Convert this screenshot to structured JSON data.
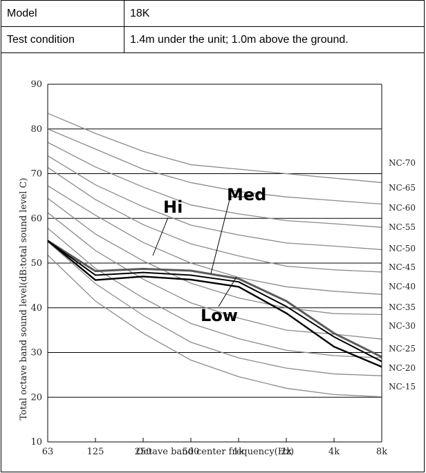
{
  "spec": {
    "model_label": "Model",
    "model_value": "18K",
    "condition_label": "Test condition",
    "condition_value": "1.4m under the unit; 1.0m above the ground."
  },
  "chart_data": {
    "type": "line",
    "xlabel": "Octave band center frequency(Hz)",
    "ylabel": "Total octave band sound level(dB:total sound level C)",
    "categories": [
      "63",
      "125",
      "250",
      "500",
      "1k",
      "2k",
      "4k",
      "8k"
    ],
    "ylim": [
      10,
      90
    ],
    "yticks": [
      10,
      20,
      30,
      40,
      50,
      60,
      70,
      80,
      90
    ],
    "grid": "horizontal",
    "nc_curves": [
      {
        "name": "NC-70",
        "values": [
          83.5,
          79,
          75,
          72,
          71,
          70,
          69,
          68
        ]
      },
      {
        "name": "NC-65",
        "values": [
          80,
          75.5,
          71,
          68,
          66,
          64.8,
          64,
          63.2
        ]
      },
      {
        "name": "NC-60",
        "values": [
          77,
          71.5,
          67,
          63,
          61,
          59.5,
          58.8,
          58
        ]
      },
      {
        "name": "NC-55",
        "values": [
          74,
          67.5,
          62.6,
          58.5,
          56.3,
          54.5,
          53.8,
          53
        ]
      },
      {
        "name": "NC-50",
        "values": [
          71.4,
          64.2,
          58.6,
          54.3,
          51.6,
          49.3,
          48.5,
          48
        ]
      },
      {
        "name": "NC-45",
        "values": [
          67.3,
          60.7,
          54.6,
          50,
          46.8,
          44.7,
          43.7,
          43
        ]
      },
      {
        "name": "NC-40",
        "values": [
          64.5,
          56.5,
          50.5,
          45.5,
          42.2,
          40,
          38.7,
          38.5
        ]
      },
      {
        "name": "NC-35",
        "values": [
          61.3,
          52.8,
          46.4,
          41.1,
          37.7,
          35,
          34.1,
          33
        ]
      },
      {
        "name": "NC-30",
        "values": [
          57.8,
          48.8,
          42.2,
          36.5,
          33.1,
          30.5,
          29.3,
          28.8
        ]
      },
      {
        "name": "NC-25",
        "values": [
          54.8,
          45.4,
          38.3,
          32.3,
          28.8,
          26.5,
          25.2,
          24.8
        ]
      },
      {
        "name": "NC-20",
        "values": [
          51.8,
          41.5,
          34.3,
          28.3,
          24.6,
          22,
          20.6,
          20.1
        ]
      },
      {
        "name": "NC-15",
        "values": null
      }
    ],
    "series": [
      {
        "name": "Hi",
        "values": [
          55,
          48.2,
          48.7,
          48.3,
          46.5,
          41.5,
          34.3,
          29
        ]
      },
      {
        "name": "Med",
        "values": [
          55,
          47.3,
          47.9,
          47.3,
          45.8,
          40.3,
          33.5,
          28
        ]
      },
      {
        "name": "Low",
        "values": [
          55,
          46.2,
          47,
          46.3,
          44.7,
          38.8,
          31.3,
          26.8
        ]
      }
    ]
  }
}
